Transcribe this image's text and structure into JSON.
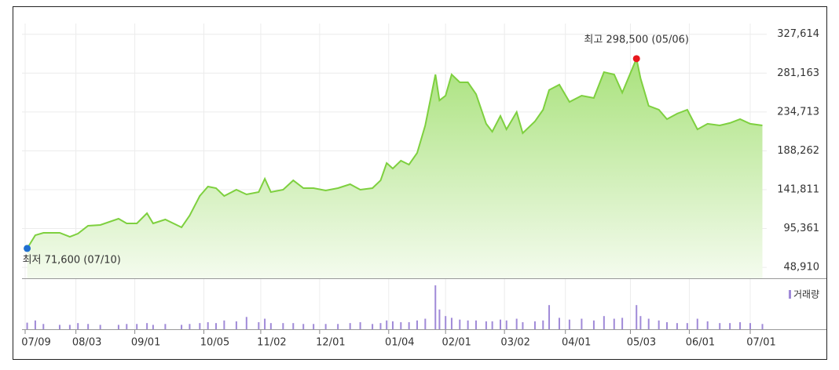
{
  "chart_data": {
    "type": "area",
    "x": [
      "07/10",
      "07/14",
      "07/18",
      "07/26",
      "07/31",
      "08/04",
      "08/09",
      "08/15",
      "08/24",
      "08/28",
      "09/02",
      "09/07",
      "09/10",
      "09/16",
      "09/24",
      "09/28",
      "10/03",
      "10/07",
      "10/11",
      "10/15",
      "10/21",
      "10/26",
      "11/01",
      "11/04",
      "11/07",
      "11/13",
      "11/18",
      "11/23",
      "11/28",
      "12/04",
      "12/10",
      "12/16",
      "12/21",
      "12/27",
      "12/31",
      "01/03",
      "01/06",
      "01/10",
      "01/14",
      "01/18",
      "01/22",
      "01/27",
      "01/29",
      "02/01",
      "02/04",
      "02/08",
      "02/12",
      "02/16",
      "02/21",
      "02/24",
      "02/28",
      "03/03",
      "03/08",
      "03/11",
      "03/17",
      "03/21",
      "03/24",
      "03/29",
      "04/03",
      "04/09",
      "04/15",
      "04/20",
      "04/25",
      "04/29",
      "05/06",
      "05/08",
      "05/12",
      "05/17",
      "05/21",
      "05/26",
      "05/31",
      "06/05",
      "06/10",
      "06/16",
      "06/21",
      "06/26",
      "07/01",
      "07/07"
    ],
    "values": [
      71600,
      87400,
      90300,
      90300,
      85600,
      89300,
      98700,
      99600,
      107100,
      101500,
      101500,
      113700,
      101500,
      106200,
      96800,
      110900,
      134300,
      145600,
      143700,
      134300,
      141800,
      136200,
      139000,
      154900,
      139000,
      141800,
      153000,
      143700,
      143700,
      140900,
      143700,
      148400,
      141800,
      143700,
      153000,
      173700,
      167100,
      176500,
      171800,
      185800,
      218700,
      279600,
      248600,
      254300,
      279600,
      270200,
      270200,
      256100,
      220600,
      211200,
      230000,
      214000,
      234700,
      209400,
      223400,
      237400,
      261000,
      267400,
      246800,
      254300,
      251500,
      282400,
      279600,
      257800,
      298500,
      274900,
      242100,
      237400,
      226200,
      232700,
      237400,
      214000,
      220600,
      218700,
      221600,
      226200,
      220600,
      218700
    ],
    "color": "#7ed03f",
    "ylim": [
      35900,
      340500
    ],
    "yticks": [
      {
        "value": 48910,
        "label": "48,910"
      },
      {
        "value": 95361,
        "label": "95,361"
      },
      {
        "value": 141811,
        "label": "141,811"
      },
      {
        "value": 188262,
        "label": "188,262"
      },
      {
        "value": 234713,
        "label": "234,713"
      },
      {
        "value": 281163,
        "label": "281,163"
      },
      {
        "value": 327614,
        "label": "327,614"
      }
    ],
    "xticks": [
      "07/09",
      "08/03",
      "09/01",
      "10/05",
      "11/02",
      "12/01",
      "01/04",
      "02/01",
      "03/02",
      "04/01",
      "05/03",
      "06/01",
      "07/01"
    ],
    "grid": true,
    "volume": {
      "name": "거래량",
      "color": "#a08ad8",
      "ylim": [
        0,
        100
      ],
      "values": [
        15,
        20,
        12,
        10,
        10,
        14,
        12,
        10,
        10,
        12,
        12,
        14,
        10,
        12,
        10,
        12,
        14,
        16,
        14,
        20,
        18,
        28,
        16,
        24,
        14,
        14,
        14,
        12,
        12,
        12,
        12,
        14,
        16,
        12,
        14,
        20,
        18,
        16,
        16,
        20,
        24,
        100,
        45,
        30,
        26,
        22,
        20,
        20,
        18,
        18,
        22,
        20,
        24,
        16,
        18,
        20,
        55,
        26,
        22,
        24,
        20,
        30,
        24,
        26,
        55,
        30,
        24,
        20,
        16,
        14,
        14,
        24,
        18,
        14,
        14,
        16,
        14,
        12
      ]
    },
    "annotations": [
      {
        "text": "최고 298,500 (05/06)",
        "x": "05/06",
        "value": 298500,
        "color": "#e8171d"
      },
      {
        "text": "최저 71,600 (07/10)",
        "x": "07/10",
        "value": 71600,
        "color": "#1f6fd0"
      }
    ]
  }
}
